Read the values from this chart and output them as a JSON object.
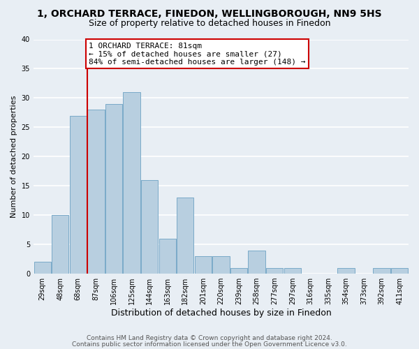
{
  "title": "1, ORCHARD TERRACE, FINEDON, WELLINGBOROUGH, NN9 5HS",
  "subtitle": "Size of property relative to detached houses in Finedon",
  "xlabel": "Distribution of detached houses by size in Finedon",
  "ylabel": "Number of detached properties",
  "bar_labels": [
    "29sqm",
    "48sqm",
    "68sqm",
    "87sqm",
    "106sqm",
    "125sqm",
    "144sqm",
    "163sqm",
    "182sqm",
    "201sqm",
    "220sqm",
    "239sqm",
    "258sqm",
    "277sqm",
    "297sqm",
    "316sqm",
    "335sqm",
    "354sqm",
    "373sqm",
    "392sqm",
    "411sqm"
  ],
  "bar_heights": [
    2,
    10,
    27,
    28,
    29,
    31,
    16,
    6,
    13,
    3,
    3,
    1,
    4,
    1,
    1,
    0,
    0,
    1,
    0,
    1,
    1
  ],
  "bar_color": "#b8cfe0",
  "bar_edge_color": "#7aaac8",
  "ylim": [
    0,
    40
  ],
  "yticks": [
    0,
    5,
    10,
    15,
    20,
    25,
    30,
    35,
    40
  ],
  "vline_x_index": 3,
  "vline_color": "#cc0000",
  "annotation_text": "1 ORCHARD TERRACE: 81sqm\n← 15% of detached houses are smaller (27)\n84% of semi-detached houses are larger (148) →",
  "annotation_box_edge": "#cc0000",
  "footer_line1": "Contains HM Land Registry data © Crown copyright and database right 2024.",
  "footer_line2": "Contains public sector information licensed under the Open Government Licence v3.0.",
  "bg_color": "#e8eef4",
  "plot_bg_color": "#e8eef4",
  "grid_color": "#ffffff",
  "title_fontsize": 10,
  "subtitle_fontsize": 9,
  "ylabel_fontsize": 8,
  "xlabel_fontsize": 9,
  "tick_fontsize": 7,
  "annotation_fontsize": 8,
  "footer_fontsize": 6.5
}
